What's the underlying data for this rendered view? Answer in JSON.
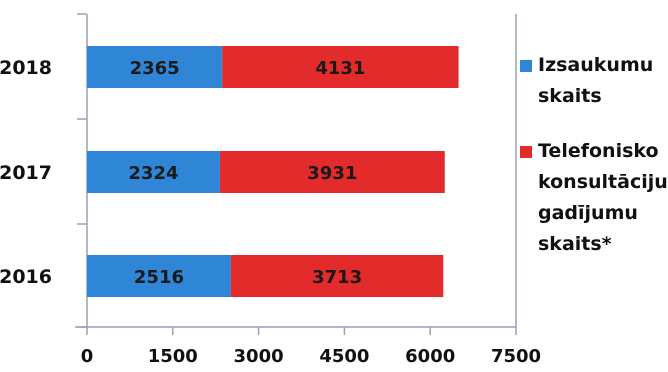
{
  "chart_data": {
    "type": "bar",
    "orientation": "horizontal",
    "stacked": true,
    "categories": [
      "2018",
      "2017",
      "2016"
    ],
    "series": [
      {
        "name": "Izsaukumu skaits",
        "values": [
          2365,
          2324,
          2516
        ],
        "color": "#2f86d6"
      },
      {
        "name": "Telefonisko konsultāciju gadījumu skaits*",
        "values": [
          4131,
          3931,
          3713
        ],
        "color": "#e32b2b"
      }
    ],
    "xlim": [
      0,
      7500
    ],
    "xticks": [
      0,
      1500,
      3000,
      4500,
      6000,
      7500
    ],
    "title": "",
    "xlabel": "",
    "ylabel": "",
    "legend_position": "right",
    "grid": false
  },
  "legend": {
    "items": [
      {
        "label": "Izsaukumu\nskaits",
        "color": "#2f86d6"
      },
      {
        "label": "Telefonisko\nkonsultāciju\ngadījumu\nskaits*",
        "color": "#e32b2b"
      }
    ]
  }
}
